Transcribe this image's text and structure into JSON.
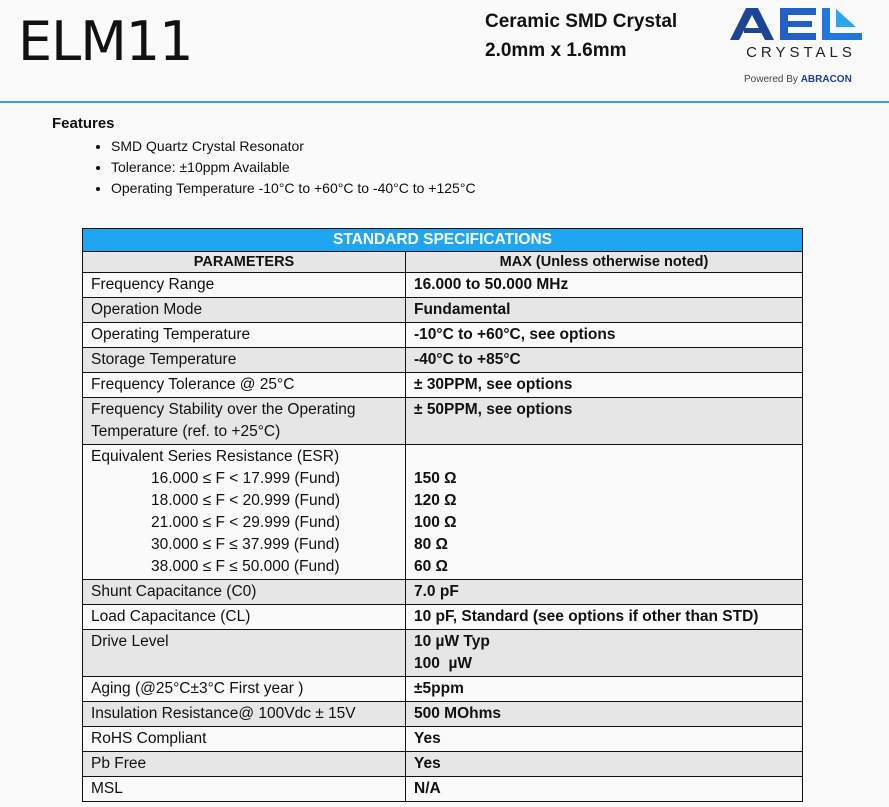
{
  "header": {
    "title": "ELM11",
    "subtitle_line1": "Ceramic SMD Crystal",
    "subtitle_line2": "2.0mm x 1.6mm",
    "logo": {
      "brand": "AEL",
      "name": "CRYSTALS",
      "powered_by": "Powered By",
      "parent": "ABRACON"
    }
  },
  "features": {
    "heading": "Features",
    "items": [
      "SMD Quartz Crystal Resonator",
      "Tolerance: ±10ppm Available",
      "Operating Temperature -10°C to +60°C to -40°C to +125°C"
    ]
  },
  "table": {
    "title": "STANDARD SPECIFICATIONS",
    "col_param": "PARAMETERS",
    "col_value": "MAX (Unless otherwise noted)",
    "rows": [
      {
        "param": "Frequency Range",
        "value": "16.000 to 50.000 MHz"
      },
      {
        "param": "Operation Mode",
        "value": "Fundamental"
      },
      {
        "param": "Operating Temperature",
        "value": "-10°C to +60°C, see options"
      },
      {
        "param": "Storage Temperature",
        "value": "-40°C to +85°C"
      },
      {
        "param": "Frequency Tolerance @ 25°C",
        "value": "± 30PPM, see options"
      },
      {
        "param": "Frequency Stability over the Operating Temperature (ref. to +25°C)",
        "value": "± 50PPM, see options"
      }
    ],
    "esr": {
      "param": "Equivalent Series Resistance (ESR)",
      "ranges": [
        {
          "range": "16.000 ≤ F < 17.999 (Fund)",
          "value": "150 Ω"
        },
        {
          "range": "18.000 ≤ F < 20.999 (Fund)",
          "value": "120 Ω"
        },
        {
          "range": "21.000 ≤ F < 29.999 (Fund)",
          "value": "100 Ω"
        },
        {
          "range": "30.000 ≤ F ≤ 37.999 (Fund)",
          "value": "80 Ω"
        },
        {
          "range": "38.000 ≤ F ≤ 50.000 (Fund)",
          "value": "60 Ω"
        }
      ]
    },
    "shunt": {
      "param": "Shunt Capacitance (C0)",
      "value": "7.0 pF"
    },
    "load": {
      "param": "Load Capacitance (CL)",
      "value": "10 pF, Standard (see options if other than STD)"
    },
    "drive": {
      "param": "Drive Level",
      "value1": "10 µW Typ",
      "value2": "100  µW"
    },
    "rows2": [
      {
        "param": "Aging (@25°C±3°C First year )",
        "value": "±5ppm"
      },
      {
        "param": "Insulation Resistance@ 100Vdc ± 15V",
        "value": "500 MOhms"
      },
      {
        "param": "RoHS Compliant",
        "value": "Yes"
      },
      {
        "param": "Pb Free",
        "value": "Yes"
      },
      {
        "param": "MSL",
        "value": "N/A"
      }
    ]
  },
  "colors": {
    "accent": "#1fa6f2",
    "logo_dark": "#1d4fa0",
    "logo_light": "#2aa7f0",
    "row_shade": "#e6e6e6"
  }
}
